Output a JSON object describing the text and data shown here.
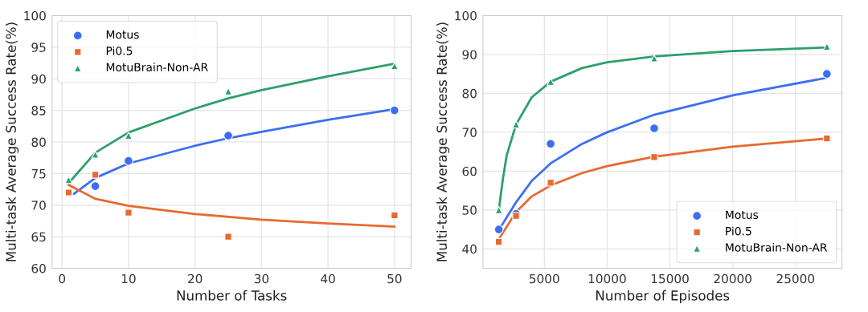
{
  "chart_data": [
    {
      "type": "scatter",
      "xlabel": "Number of Tasks",
      "ylabel": "Multi-task Average Success Rate(%)",
      "xlim": [
        -1.5,
        52.5
      ],
      "ylim": [
        60,
        100
      ],
      "xticks": [
        0,
        10,
        20,
        30,
        40,
        50
      ],
      "yticks": [
        60,
        65,
        70,
        75,
        80,
        85,
        90,
        95,
        100
      ],
      "grid": true,
      "legend": "top left",
      "series": [
        {
          "name": "Motus",
          "color": "#3b6ef5",
          "marker": "circle",
          "x": [
            5,
            10,
            25,
            50
          ],
          "values": [
            73,
            77,
            81,
            85
          ]
        },
        {
          "name": "Pi0.5",
          "color": "#e8692f",
          "marker": "square",
          "x": [
            1,
            5,
            10,
            25,
            50
          ],
          "values": [
            72,
            74.8,
            68.8,
            65,
            68.4
          ]
        },
        {
          "name": "MotuBrain-Non-AR",
          "color": "#2ca06b",
          "marker": "triangle",
          "x": [
            1,
            5,
            10,
            25,
            50
          ],
          "values": [
            74,
            78,
            81,
            88,
            92
          ]
        },
        {
          "type": "line",
          "color": "#3b6ef5",
          "marker": "none",
          "x": [
            1.8,
            5,
            10,
            20,
            25,
            30,
            40,
            50
          ],
          "values": [
            71.8,
            74.3,
            76.6,
            79.4,
            80.6,
            81.6,
            83.5,
            85.2
          ]
        },
        {
          "type": "line",
          "color": "#e8692f",
          "marker": "none",
          "x": [
            1,
            5,
            10,
            20,
            30,
            40,
            50
          ],
          "values": [
            73.2,
            71.0,
            69.9,
            68.6,
            67.7,
            67.1,
            66.6
          ]
        },
        {
          "type": "line",
          "color": "#2ca06b",
          "marker": "none",
          "x": [
            1,
            5,
            10,
            20,
            25,
            30,
            40,
            50
          ],
          "values": [
            73.5,
            78.3,
            81.5,
            85.3,
            86.9,
            88.2,
            90.4,
            92.4
          ]
        }
      ]
    },
    {
      "type": "scatter",
      "xlabel": "Number of Episodes",
      "ylabel": "Multi-task Average Success Rate(%)",
      "xlim": [
        110,
        28700
      ],
      "ylim": [
        35,
        100
      ],
      "xticks": [
        5000,
        10000,
        15000,
        20000,
        25000
      ],
      "yticks": [
        40,
        50,
        60,
        70,
        80,
        90,
        100
      ],
      "grid": true,
      "legend": "bottom right",
      "series": [
        {
          "name": "Motus",
          "color": "#3b6ef5",
          "marker": "circle",
          "x": [
            1375,
            2750,
            5500,
            13750,
            27500
          ],
          "values": [
            45,
            49,
            67,
            71,
            85
          ]
        },
        {
          "name": "Pi0.5",
          "color": "#e8692f",
          "marker": "square",
          "x": [
            1375,
            2750,
            5500,
            13750,
            27500
          ],
          "values": [
            41.8,
            48.5,
            57,
            63.6,
            68.4
          ]
        },
        {
          "name": "MotuBrain-Non-AR",
          "color": "#2ca06b",
          "marker": "triangle",
          "x": [
            1375,
            2750,
            5500,
            13750,
            27500
          ],
          "values": [
            50,
            72,
            83,
            89,
            92
          ]
        },
        {
          "type": "line",
          "color": "#3b6ef5",
          "marker": "none",
          "x": [
            1500,
            2750,
            4000,
            5500,
            8000,
            10000,
            13750,
            20000,
            27500
          ],
          "values": [
            45.5,
            52,
            57.5,
            62,
            67,
            70,
            74.5,
            79.5,
            84
          ]
        },
        {
          "type": "line",
          "color": "#e8692f",
          "marker": "none",
          "x": [
            1375,
            2750,
            4000,
            5500,
            8000,
            10000,
            13750,
            20000,
            27500
          ],
          "values": [
            42.5,
            49.5,
            53.5,
            56.3,
            59.5,
            61.3,
            63.7,
            66.3,
            68.4
          ]
        },
        {
          "type": "line",
          "color": "#2ca06b",
          "marker": "none",
          "x": [
            1375,
            1700,
            2000,
            2750,
            4000,
            5500,
            8000,
            10000,
            13750,
            20000,
            27500
          ],
          "values": [
            50,
            58,
            64,
            72,
            79,
            83,
            86.5,
            88,
            89.5,
            90.9,
            91.8
          ]
        }
      ]
    }
  ]
}
